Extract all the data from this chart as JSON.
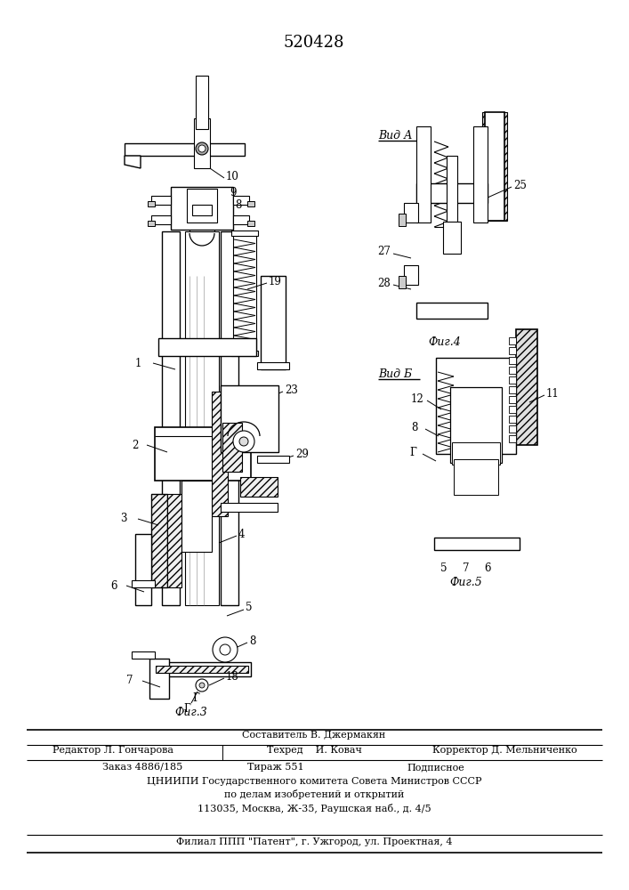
{
  "title": "520428",
  "fig_bg": "#ffffff",
  "footer": {
    "line1": "Составитель В. Джермакян",
    "line2a": "Редактор Л. Гончарова",
    "line2b": "Техред    И. Ковач",
    "line2c": "Корректор Д. Мельниченко",
    "line3a": "Заказ 4886/185",
    "line3b": "Тираж 551",
    "line3c": "Подписное",
    "line4": "ЦНИИПИ Государственного комитета Совета Министров СССР",
    "line5": "по делам изобретений и открытий",
    "line6": "113035, Москва, Ж-35, Раушская наб., д. 4/5",
    "line7": "Филиал ППП \"Патент\", г. Ужгород, ул. Проектная, 4"
  }
}
